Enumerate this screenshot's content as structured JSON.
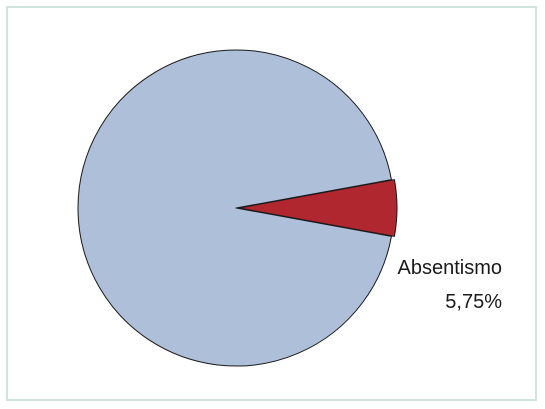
{
  "chart_data": {
    "type": "pie",
    "slices": [
      {
        "name": "",
        "value": 94.25,
        "color": "#aebfd9"
      },
      {
        "name": "Absentismo",
        "value": 5.75,
        "value_label": "5,75%",
        "color": "#b0272f",
        "exploded": true
      }
    ],
    "outline_color": "#1a1a1a",
    "frame_color": "#cfe3df",
    "title": "",
    "legend": "none"
  }
}
